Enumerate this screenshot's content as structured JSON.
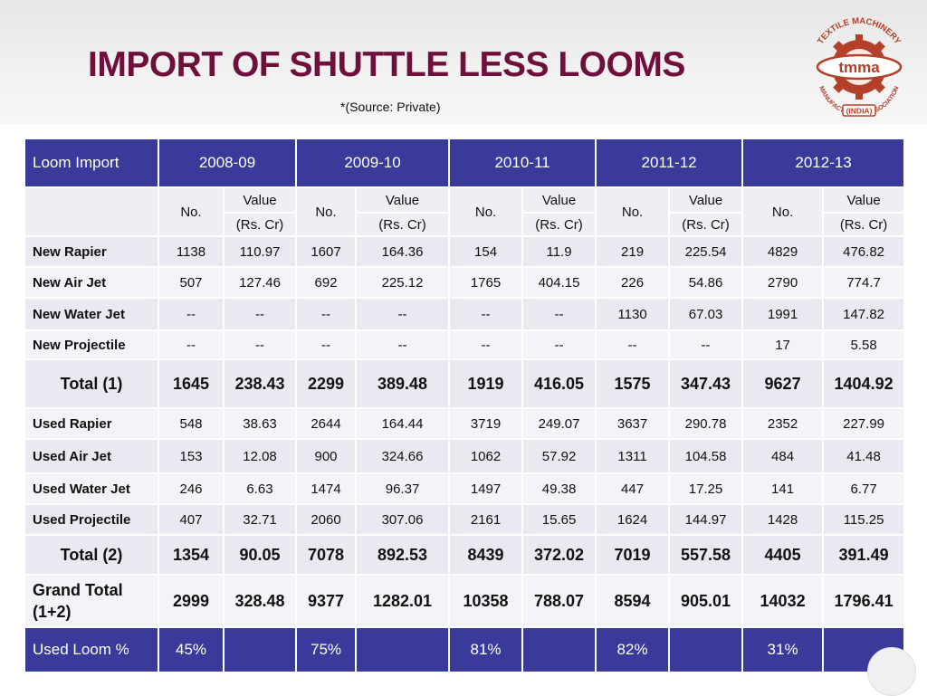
{
  "header": {
    "title": "IMPORT OF SHUTTLE LESS LOOMS",
    "source": "*(Source: Private)"
  },
  "logo": {
    "arc_text": "TEXTILE MACHINERY",
    "center_text": "tmma",
    "bottom_text": "MANUFACTURERS' ASSOCIATION",
    "country": "(INDIA)",
    "brand_color": "#b5402a"
  },
  "colors": {
    "title": "#6e0f3c",
    "header_row": "#3a3a9a",
    "row_light": "#f3f3f8",
    "row_dark": "#e9e9f1"
  },
  "table": {
    "corner_label": "Loom Import",
    "years": [
      "2008-09",
      "2009-10",
      "2010-11",
      "2011-12",
      "2012-13"
    ],
    "sub": {
      "no": "No.",
      "value": "Value",
      "unit": "(Rs. Cr)"
    },
    "rows": [
      {
        "label": "New Rapier",
        "cells": [
          "1138",
          "110.97",
          "1607",
          "164.36",
          "154",
          "11.9",
          "219",
          "225.54",
          "4829",
          "476.82"
        ]
      },
      {
        "label": "New Air Jet",
        "cells": [
          "507",
          "127.46",
          "692",
          "225.12",
          "1765",
          "404.15",
          "226",
          "54.86",
          "2790",
          "774.7"
        ]
      },
      {
        "label": "New Water Jet",
        "cells": [
          "--",
          "--",
          "--",
          "--",
          "--",
          "--",
          "1130",
          "67.03",
          "1991",
          "147.82"
        ]
      },
      {
        "label": "New Projectile",
        "cells": [
          "--",
          "--",
          "--",
          "--",
          "--",
          "--",
          "--",
          "--",
          "17",
          "5.58"
        ]
      },
      {
        "label": "Total (1)",
        "cells": [
          "1645",
          "238.43",
          "2299",
          "389.48",
          "1919",
          "416.05",
          "1575",
          "347.43",
          "9627",
          "1404.92"
        ]
      },
      {
        "label": "Used Rapier",
        "cells": [
          "548",
          "38.63",
          "2644",
          "164.44",
          "3719",
          "249.07",
          "3637",
          "290.78",
          "2352",
          "227.99"
        ]
      },
      {
        "label": "Used Air Jet",
        "cells": [
          "153",
          "12.08",
          "900",
          "324.66",
          "1062",
          "57.92",
          "1311",
          "104.58",
          "484",
          "41.48"
        ]
      },
      {
        "label": "Used Water Jet",
        "cells": [
          "246",
          "6.63",
          "1474",
          "96.37",
          "1497",
          "49.38",
          "447",
          "17.25",
          "141",
          "6.77"
        ]
      },
      {
        "label": "Used Projectile",
        "cells": [
          "407",
          "32.71",
          "2060",
          "307.06",
          "2161",
          "15.65",
          "1624",
          "144.97",
          "1428",
          "115.25"
        ]
      },
      {
        "label": "Total (2)",
        "cells": [
          "1354",
          "90.05",
          "7078",
          "892.53",
          "8439",
          "372.02",
          "7019",
          "557.58",
          "4405",
          "391.49"
        ]
      },
      {
        "label": "Grand Total (1+2)",
        "cells": [
          "2999",
          "328.48",
          "9377",
          "1282.01",
          "10358",
          "788.07",
          "8594",
          "905.01",
          "14032",
          "1796.41"
        ]
      }
    ],
    "used_loom": {
      "label": "Used Loom %",
      "values": [
        "45%",
        "75%",
        "81%",
        "82%",
        "31%"
      ]
    }
  }
}
